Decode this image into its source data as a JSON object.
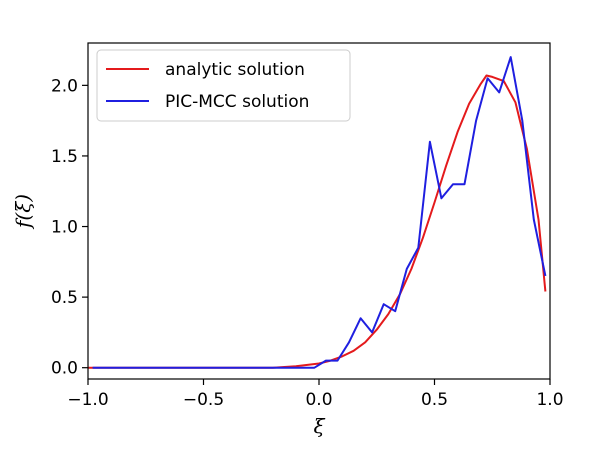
{
  "chart_data": {
    "type": "line",
    "xlabel": "ξ",
    "ylabel": "f(ξ)",
    "xlim": [
      -1.0,
      1.0
    ],
    "ylim": [
      -0.08,
      2.3
    ],
    "xticks": [
      -1.0,
      -0.5,
      0.0,
      0.5,
      1.0
    ],
    "xtick_labels": [
      "−1.0",
      "−0.5",
      "0.0",
      "0.5",
      "1.0"
    ],
    "yticks": [
      0.0,
      0.5,
      1.0,
      1.5,
      2.0
    ],
    "ytick_labels": [
      "0.0",
      "0.5",
      "1.0",
      "1.5",
      "2.0"
    ],
    "grid": false,
    "legend_position": "top-left",
    "series": [
      {
        "name": "analytic solution",
        "color": "#e41a1c",
        "x": [
          -1.0,
          -0.8,
          -0.6,
          -0.4,
          -0.3,
          -0.2,
          -0.1,
          0.0,
          0.05,
          0.1,
          0.15,
          0.2,
          0.25,
          0.3,
          0.35,
          0.4,
          0.45,
          0.5,
          0.55,
          0.6,
          0.65,
          0.7,
          0.725,
          0.75,
          0.8,
          0.85,
          0.9,
          0.95,
          0.98
        ],
        "y": [
          0.0,
          0.0,
          0.0,
          0.0,
          0.0,
          0.0,
          0.01,
          0.03,
          0.05,
          0.08,
          0.12,
          0.18,
          0.27,
          0.38,
          0.52,
          0.7,
          0.92,
          1.17,
          1.43,
          1.67,
          1.87,
          2.01,
          2.07,
          2.06,
          2.03,
          1.88,
          1.55,
          1.05,
          0.54
        ]
      },
      {
        "name": "PIC-MCC solution",
        "color": "#1f1fe0",
        "x": [
          -0.98,
          -0.9,
          -0.8,
          -0.5,
          -0.2,
          -0.02,
          0.03,
          0.08,
          0.13,
          0.18,
          0.23,
          0.28,
          0.33,
          0.38,
          0.43,
          0.48,
          0.53,
          0.58,
          0.63,
          0.68,
          0.73,
          0.78,
          0.83,
          0.88,
          0.93,
          0.98
        ],
        "y": [
          0.0,
          0.0,
          0.0,
          0.0,
          0.0,
          0.0,
          0.05,
          0.05,
          0.18,
          0.35,
          0.25,
          0.45,
          0.4,
          0.7,
          0.85,
          1.6,
          1.2,
          1.3,
          1.3,
          1.75,
          2.05,
          1.95,
          2.2,
          1.75,
          1.05,
          0.65
        ]
      }
    ]
  }
}
